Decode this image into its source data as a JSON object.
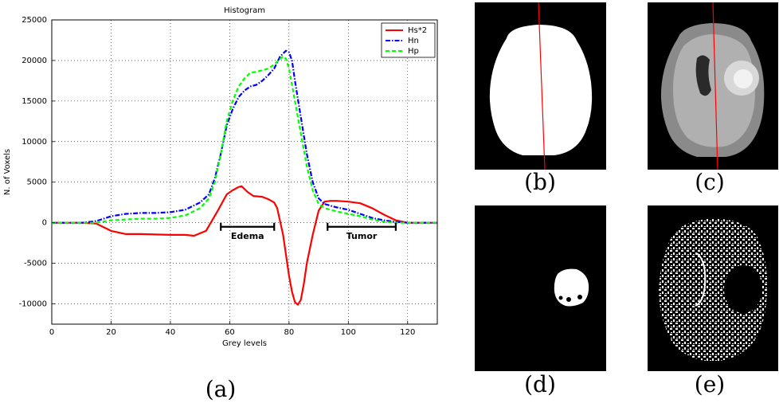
{
  "figure": {
    "captions": [
      "(a)",
      "(b)",
      "(c)",
      "(d)",
      "(e)"
    ]
  },
  "chart_data": {
    "type": "line",
    "title": "Histogram",
    "xlabel": "Grey levels",
    "ylabel": "N. of Voxels",
    "xlim": [
      0,
      130
    ],
    "ylim": [
      -12500,
      25000
    ],
    "xticks": [
      0,
      20,
      40,
      60,
      80,
      100,
      120
    ],
    "yticks": [
      -10000,
      -5000,
      0,
      5000,
      10000,
      15000,
      20000,
      25000
    ],
    "grid": true,
    "legend_position": "top-right",
    "series": [
      {
        "name": "Hs*2",
        "color": "#ff0000",
        "dash": "solid",
        "x": [
          0,
          10,
          15,
          20,
          25,
          30,
          40,
          45,
          48,
          52,
          56,
          59,
          61,
          63,
          64,
          66,
          68,
          71,
          73,
          75,
          76,
          78,
          79,
          80,
          81,
          82,
          83,
          84,
          85,
          86,
          88,
          90,
          92,
          94,
          96,
          100,
          104,
          108,
          112,
          116,
          120,
          125,
          130
        ],
        "y": [
          0,
          0,
          -100,
          -1000,
          -1400,
          -1400,
          -1500,
          -1500,
          -1600,
          -1000,
          1500,
          3500,
          4000,
          4400,
          4500,
          3800,
          3300,
          3200,
          2900,
          2500,
          1800,
          -1500,
          -4000,
          -6500,
          -8500,
          -9800,
          -10100,
          -9500,
          -7500,
          -5000,
          -1500,
          1500,
          2600,
          2700,
          2700,
          2600,
          2400,
          1800,
          1000,
          300,
          0,
          0,
          0
        ]
      },
      {
        "name": "Hn",
        "color": "#0000ff",
        "dash": "dashdot",
        "x": [
          0,
          10,
          15,
          20,
          25,
          30,
          35,
          40,
          45,
          50,
          53,
          55,
          57,
          59,
          61,
          63,
          65,
          67,
          69,
          71,
          73,
          75,
          77,
          79,
          80,
          81,
          82,
          84,
          86,
          88,
          90,
          92,
          94,
          96,
          100,
          104,
          108,
          112,
          116,
          120,
          125,
          130
        ],
        "y": [
          0,
          0,
          200,
          800,
          1100,
          1200,
          1200,
          1300,
          1600,
          2500,
          3500,
          5500,
          8500,
          12000,
          14000,
          15500,
          16300,
          16800,
          17000,
          17500,
          18200,
          19000,
          20500,
          21200,
          21000,
          20000,
          17500,
          13000,
          8500,
          5000,
          3000,
          2300,
          2100,
          1900,
          1600,
          1100,
          600,
          300,
          100,
          0,
          0,
          0
        ]
      },
      {
        "name": "Hp",
        "color": "#00ff00",
        "dash": "dashed",
        "x": [
          0,
          10,
          15,
          20,
          25,
          30,
          35,
          40,
          45,
          50,
          53,
          55,
          57,
          59,
          61,
          63,
          65,
          67,
          69,
          71,
          73,
          75,
          77,
          78,
          79,
          80,
          81,
          82,
          84,
          86,
          88,
          90,
          92,
          94,
          96,
          100,
          104,
          108,
          112,
          116,
          120,
          125,
          130
        ],
        "y": [
          0,
          0,
          0,
          300,
          400,
          500,
          500,
          600,
          900,
          1800,
          3000,
          5000,
          8500,
          12500,
          15000,
          16800,
          17800,
          18500,
          18600,
          18800,
          19000,
          19500,
          20200,
          20500,
          20200,
          19000,
          17000,
          15000,
          11000,
          7000,
          4000,
          2300,
          1800,
          1600,
          1400,
          1100,
          800,
          400,
          100,
          0,
          0,
          0,
          0
        ]
      }
    ],
    "annotations": [
      {
        "label": "Edema",
        "x_start": 57,
        "x_end": 75,
        "y": -500
      },
      {
        "label": "Tumor",
        "x_start": 93,
        "x_end": 116,
        "y": -500
      }
    ]
  }
}
